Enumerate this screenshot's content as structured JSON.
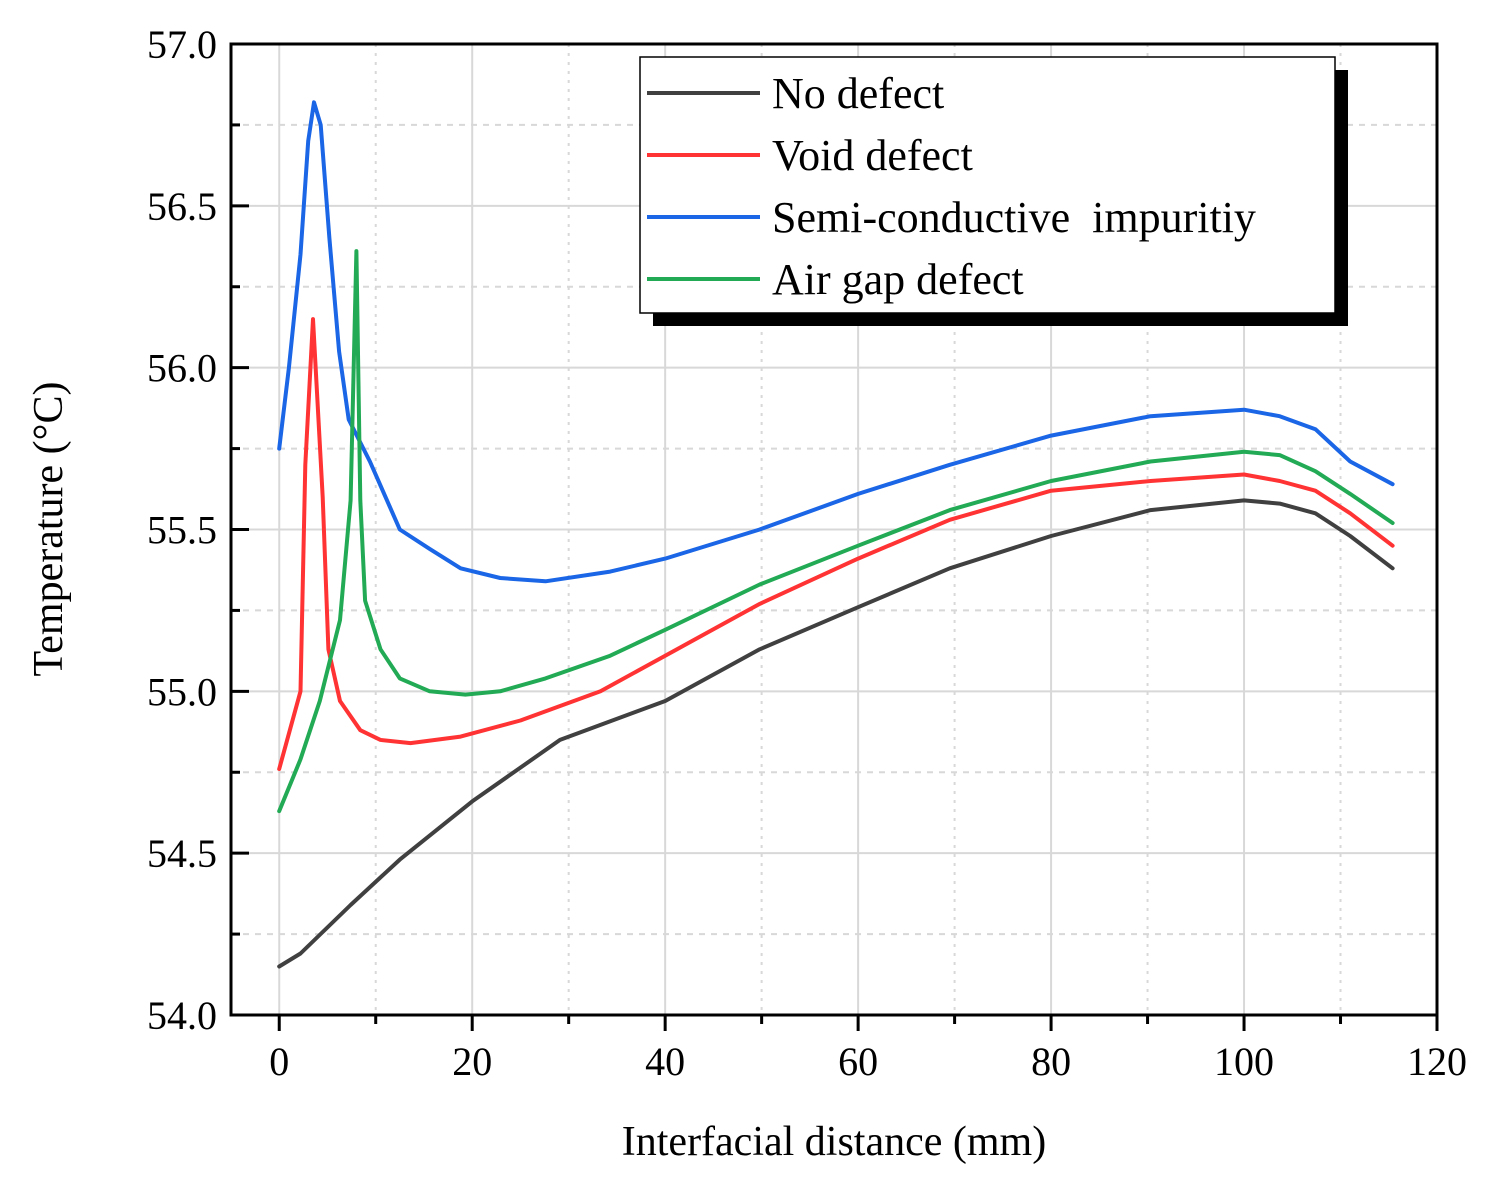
{
  "chart_data": {
    "type": "line",
    "title": "",
    "xlabel": "Interfacial distance (mm)",
    "ylabel": "Temperature (°C)",
    "xlim": [
      -5,
      120
    ],
    "ylim": [
      54.0,
      57.0
    ],
    "xticks": [
      0,
      20,
      40,
      60,
      80,
      100,
      120
    ],
    "yticks": [
      54.0,
      54.5,
      55.0,
      55.5,
      56.0,
      56.5,
      57.0
    ],
    "ytick_labels": [
      "54.0",
      "54.5",
      "55.0",
      "55.5",
      "56.0",
      "56.5",
      "57.0"
    ],
    "grid": true,
    "legend_position": "top-right",
    "series": [
      {
        "name": "No defect",
        "color": "#404040",
        "x": [
          0,
          2.2,
          7.4,
          12.5,
          20,
          29.1,
          40,
          49.8,
          60,
          69.5,
          80,
          90.3,
          100,
          103.7,
          107.4,
          111,
          115.4
        ],
        "y": [
          54.15,
          54.19,
          54.34,
          54.48,
          54.66,
          54.85,
          54.97,
          55.13,
          55.26,
          55.38,
          55.48,
          55.56,
          55.59,
          55.58,
          55.55,
          55.48,
          55.38
        ]
      },
      {
        "name": "Void defect",
        "color": "#ff3333",
        "x": [
          0,
          2.2,
          2.7,
          3.5,
          4.5,
          5.1,
          6.3,
          8.4,
          10.5,
          13.6,
          18.8,
          25,
          33.3,
          40,
          49.8,
          60,
          69.5,
          80,
          90.3,
          100,
          103.7,
          107.4,
          111,
          115.4
        ],
        "y": [
          54.76,
          55.0,
          55.7,
          56.15,
          55.6,
          55.13,
          54.97,
          54.88,
          54.85,
          54.84,
          54.86,
          54.91,
          55.0,
          55.11,
          55.27,
          55.41,
          55.53,
          55.62,
          55.65,
          55.67,
          55.65,
          55.62,
          55.55,
          55.45
        ]
      },
      {
        "name": "Semi-conductive  impuritiy",
        "color": "#1a66e6",
        "x": [
          0,
          1.0,
          2.2,
          3.0,
          3.6,
          4.3,
          5.2,
          6.2,
          7.2,
          9.4,
          12.5,
          15.6,
          18.8,
          22.9,
          27.6,
          34.3,
          40,
          49.8,
          60,
          69.5,
          80,
          90.3,
          100,
          103.7,
          107.4,
          111,
          115.4
        ],
        "y": [
          55.75,
          56.0,
          56.35,
          56.7,
          56.82,
          56.75,
          56.4,
          56.05,
          55.84,
          55.71,
          55.5,
          55.44,
          55.38,
          55.35,
          55.34,
          55.37,
          55.41,
          55.5,
          55.61,
          55.7,
          55.79,
          55.85,
          55.87,
          55.85,
          55.81,
          55.71,
          55.64
        ]
      },
      {
        "name": "Air gap defect",
        "color": "#22aa55",
        "x": [
          0,
          2.2,
          4.2,
          6.3,
          7.4,
          8.0,
          8.4,
          8.9,
          10.5,
          12.5,
          15.6,
          19.3,
          22.9,
          27.6,
          34.3,
          40,
          49.8,
          60,
          69.5,
          80,
          90.3,
          100,
          103.7,
          107.4,
          111,
          115.4
        ],
        "y": [
          54.63,
          54.79,
          54.97,
          55.22,
          55.59,
          56.36,
          55.59,
          55.28,
          55.13,
          55.04,
          55.0,
          54.99,
          55.0,
          55.04,
          55.11,
          55.19,
          55.33,
          55.45,
          55.56,
          55.65,
          55.71,
          55.74,
          55.73,
          55.68,
          55.61,
          55.52
        ]
      }
    ]
  }
}
